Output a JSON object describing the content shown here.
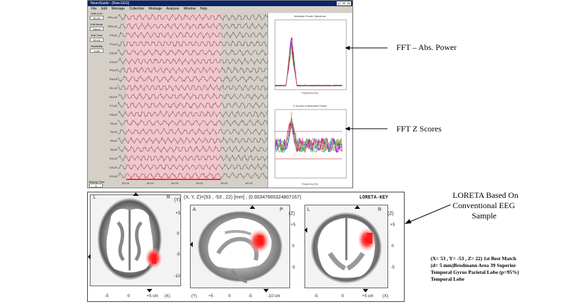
{
  "window": {
    "title": "NeuroGuide - [Raw EEG]",
    "menu": [
      "File",
      "Edit",
      "Montage",
      "Collection",
      "Montage",
      "Analysis",
      "Window",
      "Help"
    ]
  },
  "left_panel": {
    "gain_label": "Gain (uV)",
    "gain_value": "50.00",
    "edit_mode_label": "Edit Mode",
    "edit_mode_value": "Select",
    "edit_time_label": "Edit Time",
    "edit_time_value": "00:15",
    "reliability_label": "Reliability",
    "reliability_value": "0.98",
    "display_time_label": "Display Time",
    "display_time_value": "0"
  },
  "channels": [
    "FP1-LE",
    "FP2-LE",
    "F3-LE",
    "F4-LE",
    "C3-LE",
    "C4-LE",
    "P3-LE",
    "P4-LE",
    "O1-LE",
    "O2-LE",
    "F7-LE",
    "F8-LE",
    "T3-LE",
    "T4-LE",
    "T5-LE",
    "T6-LE",
    "FZ-LE",
    "CZ-LE",
    "PZ-LE"
  ],
  "time_ticks": [
    "00:18",
    "00:19",
    "00:20",
    "00:21",
    "00:22",
    "00:23"
  ],
  "fft": {
    "abs_title": "Absolute Power Spectrum",
    "abs_xlabel": "Frequency (Hz)",
    "z_title": "Z Scores of Absolute Power",
    "z_xlabel": "Frequency (Hz)"
  },
  "annotations": {
    "fft_abs": "FFT – Abs. Power",
    "fft_z": "FFT Z Scores",
    "loreta_l1": "LORETA Based On",
    "loreta_l2": "Conventional EEG",
    "loreta_l3": "Sample"
  },
  "loreta": {
    "coord_text": "(X, Y, Z)=(53 , -53 , 22) [mm] ; (0.00347665324807167)",
    "key": "LORETA-KEY",
    "axial": {
      "left": "L",
      "right": "R",
      "axis": "(Y)",
      "ticks": [
        "+5",
        "0",
        "-5",
        "-10"
      ],
      "bottom": [
        "-5",
        "0",
        "+5 cm"
      ],
      "bottom_axis": "(X)"
    },
    "sagittal": {
      "left": "A",
      "right": "P",
      "axis": "(Z)",
      "ticks": [
        "+5",
        "0",
        "-5"
      ],
      "bottom": [
        "(Y)",
        "+5",
        "0",
        "-5",
        "-10 cm"
      ]
    },
    "coronal": {
      "left": "L",
      "right": "R",
      "axis": "(Z)",
      "ticks": [
        "+5",
        "0",
        "-5"
      ],
      "bottom": [
        "-5",
        "0",
        "+5 cm"
      ],
      "bottom_axis": "(X)"
    },
    "note": "(X= 53 , Y= -53 , Z= 22) 1st Best Match (d= 5 mm)Brodmann Area 39 Superior Temporal Gyrus Parietal Lobe (p=95%) Temporal Lobe"
  },
  "colors": {
    "highlight": "#f5c8d0",
    "activation": "#ff2a2a",
    "titlebar": "#0a246a"
  }
}
